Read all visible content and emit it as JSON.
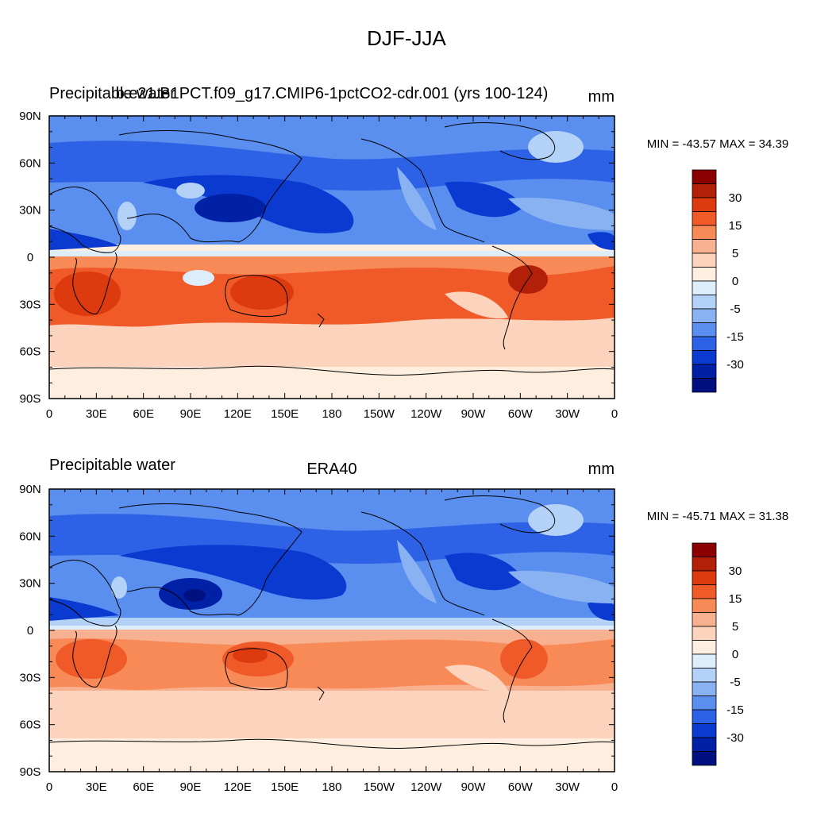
{
  "figure": {
    "title": "DJF-JJA"
  },
  "panels": [
    {
      "left_title": "Precipitable water",
      "center_title": "b.e21.B1PCT.f09_g17.CMIP6-1pctCO2-cdr.001 (yrs 100-124)",
      "units": "mm",
      "minmax_text": "MIN = -43.57 MAX =  34.39"
    },
    {
      "left_title": "Precipitable water",
      "center_title": "ERA40",
      "units": "mm",
      "minmax_text": "MIN = -45.71 MAX =  31.38"
    }
  ],
  "axes": {
    "lon_ticks": [
      "0",
      "30E",
      "60E",
      "90E",
      "120E",
      "150E",
      "180",
      "150W",
      "120W",
      "90W",
      "60W",
      "30W",
      "0"
    ],
    "lat_ticks": [
      "90N",
      "60N",
      "30N",
      "0",
      "30S",
      "60S",
      "90S"
    ]
  },
  "colorbar": {
    "levels": [
      -30,
      -15,
      -5,
      0,
      5,
      15,
      30
    ],
    "labels": [
      "30",
      "15",
      "5",
      "0",
      "-5",
      "-15",
      "-30"
    ],
    "colors_top_to_bottom": [
      "#8b0000",
      "#b2200a",
      "#de3a10",
      "#f05a28",
      "#f88a58",
      "#f7b090",
      "#fcd3bc",
      "#fdeee0",
      "#dceefc",
      "#b4d2f7",
      "#88b2f2",
      "#5a8eef",
      "#2e62e6",
      "#0a3ad0",
      "#0020a6",
      "#001080"
    ]
  }
}
